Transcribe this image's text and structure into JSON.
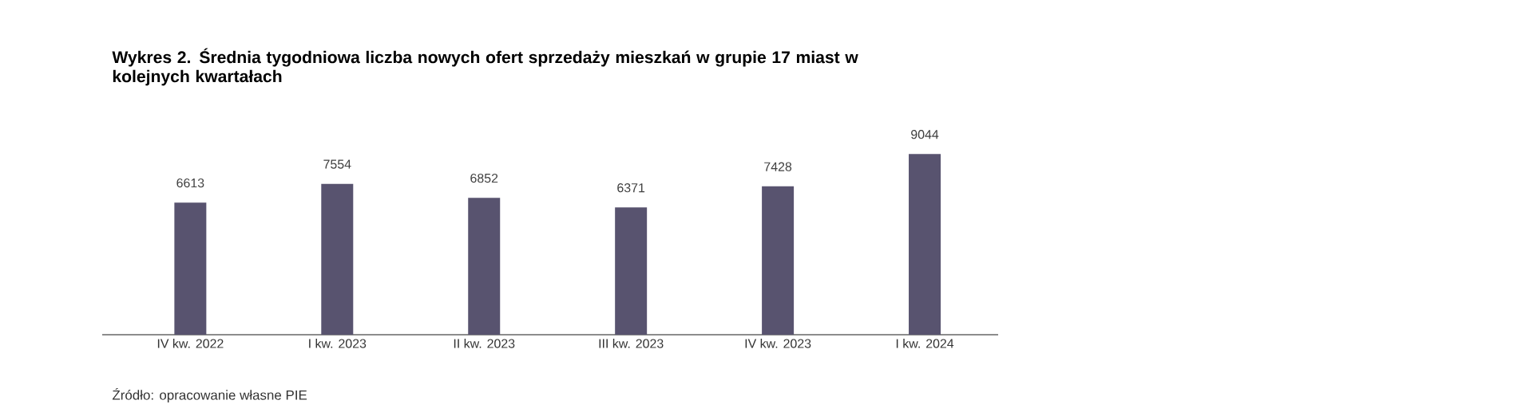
{
  "chart_data": {
    "type": "bar",
    "title": "Wykres 2.  Średnia tygodniowa liczba nowych ofert sprzedaży mieszkań w grupie 17 miast w kolejnych kwartałach",
    "categories": [
      "IV kw. 2022",
      "I kw. 2023",
      "II kw. 2023",
      "III kw. 2023",
      "IV kw. 2023",
      "I kw. 2024"
    ],
    "values": [
      6613,
      7554,
      6852,
      6371,
      7428,
      9044
    ],
    "color": "#58536f",
    "data_labels": true,
    "annotations": [
      "Źródło: opracowanie własne PIE"
    ]
  }
}
